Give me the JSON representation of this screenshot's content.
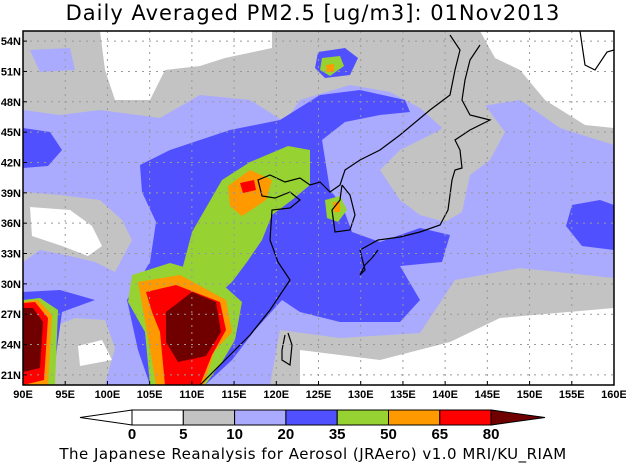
{
  "title": "Daily Averaged PM2.5 [ug/m3]: 01Nov2013",
  "footer": "The Japanese Reanalysis for Aerosol (JRAero) v1.0 MRI/KU_RIAM",
  "map": {
    "projection": "lat-lon",
    "lon_range": [
      90,
      160
    ],
    "lat_range": [
      20,
      55
    ],
    "lon_ticks": [
      "90E",
      "95E",
      "100E",
      "105E",
      "110E",
      "115E",
      "120E",
      "125E",
      "130E",
      "135E",
      "140E",
      "145E",
      "150E",
      "155E",
      "160E"
    ],
    "lat_ticks": [
      "21N",
      "24N",
      "27N",
      "30N",
      "33N",
      "36N",
      "39N",
      "42N",
      "45N",
      "48N",
      "51N",
      "54N"
    ],
    "grid": "dotted",
    "variable": "PM2.5"
  },
  "colorbar": {
    "levels": [
      "0",
      "5",
      "10",
      "20",
      "35",
      "50",
      "65",
      "80"
    ],
    "colors": [
      "#ffffff",
      "#ffffff",
      "#c3c3c3",
      "#aaaaff",
      "#5050ff",
      "#96d232",
      "#ff9900",
      "#ff0000",
      "#700000"
    ]
  }
}
